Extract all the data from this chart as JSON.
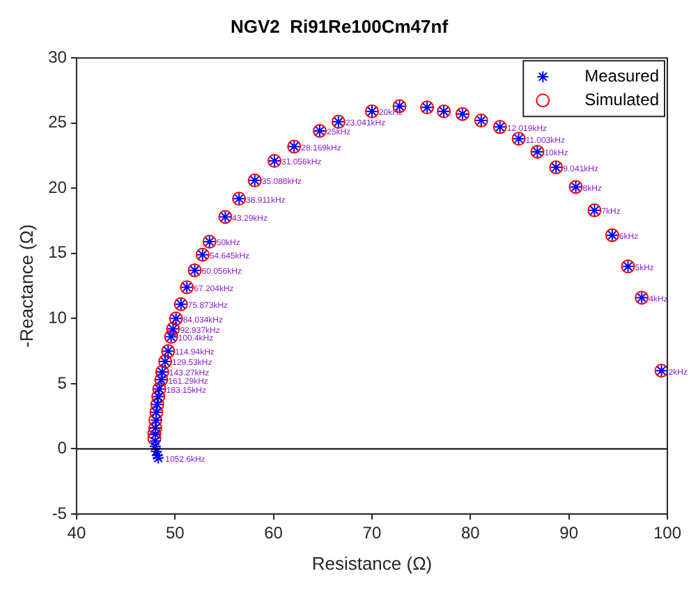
{
  "chart_data": {
    "type": "scatter",
    "title": "NGV2  Ri91Re100Cm47nf",
    "xlabel": "Resistance (Ω)",
    "ylabel": "-Reactance (Ω)",
    "series": [
      {
        "name": "Measured",
        "color": "#0000ff",
        "marker": "cross",
        "x": [
          99.4,
          97.4,
          96.0,
          94.4,
          92.6,
          90.7,
          88.7,
          86.8,
          84.9,
          83.0,
          81.1,
          79.2,
          77.3,
          75.6,
          72.8,
          70.0,
          66.6,
          64.7,
          62.1,
          60.1,
          58.1,
          56.5,
          55.1,
          53.5,
          52.8,
          52.0,
          51.2,
          50.6,
          50.1,
          49.8,
          49.6,
          49.3,
          49.0,
          48.7,
          48.6,
          48.4,
          48.3,
          48.2,
          48.1,
          48.1,
          48.0,
          48.0,
          48.0,
          48.0,
          48.1,
          48.2,
          48.3
        ],
        "values": [
          6.0,
          11.6,
          14.0,
          16.4,
          18.3,
          20.1,
          21.6,
          22.8,
          23.8,
          24.7,
          25.2,
          25.7,
          25.9,
          26.2,
          26.3,
          25.9,
          25.1,
          24.4,
          23.2,
          22.1,
          20.6,
          19.2,
          17.8,
          15.9,
          14.9,
          13.7,
          12.4,
          11.1,
          10.0,
          9.2,
          8.6,
          7.5,
          6.7,
          5.9,
          5.3,
          4.6,
          4.0,
          3.4,
          2.8,
          2.2,
          1.6,
          1.1,
          0.6,
          0.2,
          -0.2,
          -0.5,
          -0.7
        ]
      },
      {
        "name": "Simulated",
        "color": "#ff0000",
        "marker": "circle",
        "x": [
          99.4,
          97.4,
          96.0,
          94.4,
          92.6,
          90.7,
          88.7,
          86.8,
          84.9,
          83.0,
          81.1,
          79.2,
          77.3,
          75.6,
          72.8,
          70.0,
          66.6,
          64.7,
          62.1,
          60.1,
          58.1,
          56.5,
          55.1,
          53.5,
          52.8,
          52.0,
          51.2,
          50.6,
          50.1,
          49.8,
          49.6,
          49.3,
          49.0,
          48.7,
          48.6,
          48.4,
          48.3,
          48.2,
          48.1,
          48.0,
          48.0,
          47.9,
          47.9
        ],
        "values": [
          6.0,
          11.6,
          14.0,
          16.4,
          18.3,
          20.1,
          21.6,
          22.8,
          23.8,
          24.7,
          25.2,
          25.7,
          25.9,
          26.2,
          26.3,
          25.9,
          25.1,
          24.4,
          23.2,
          22.1,
          20.6,
          19.2,
          17.8,
          15.9,
          14.9,
          13.7,
          12.4,
          11.1,
          10.0,
          9.2,
          8.6,
          7.5,
          6.7,
          5.9,
          5.3,
          4.6,
          4.0,
          3.4,
          2.8,
          2.2,
          1.6,
          1.2,
          0.8
        ]
      }
    ],
    "annotations": [
      {
        "text": "2kHz",
        "x": 99.4,
        "y": 6.0
      },
      {
        "text": "4kHz",
        "x": 97.4,
        "y": 11.6
      },
      {
        "text": "5kHz",
        "x": 96.0,
        "y": 14.0
      },
      {
        "text": "6kHz",
        "x": 94.4,
        "y": 16.4
      },
      {
        "text": "7kHz",
        "x": 92.6,
        "y": 18.3
      },
      {
        "text": "8kHz",
        "x": 90.7,
        "y": 20.1
      },
      {
        "text": "9.041kHz",
        "x": 88.7,
        "y": 21.6
      },
      {
        "text": "10kHz",
        "x": 86.8,
        "y": 22.8
      },
      {
        "text": "11.003kHz",
        "x": 84.9,
        "y": 23.8
      },
      {
        "text": "12.019kHz",
        "x": 83.0,
        "y": 24.7
      },
      {
        "text": "20kHz",
        "x": 70.0,
        "y": 25.9
      },
      {
        "text": "23.041kHz",
        "x": 66.6,
        "y": 25.1
      },
      {
        "text": "25kHz",
        "x": 64.7,
        "y": 24.4
      },
      {
        "text": "28.169kHz",
        "x": 62.1,
        "y": 23.2
      },
      {
        "text": "31.056kHz",
        "x": 60.1,
        "y": 22.1
      },
      {
        "text": "35.088kHz",
        "x": 58.1,
        "y": 20.6
      },
      {
        "text": "38.911kHz",
        "x": 56.5,
        "y": 19.2
      },
      {
        "text": "43.29kHz",
        "x": 55.1,
        "y": 17.8
      },
      {
        "text": "50kHz",
        "x": 53.5,
        "y": 15.9
      },
      {
        "text": "54.645kHz",
        "x": 52.8,
        "y": 14.9
      },
      {
        "text": "60.056kHz",
        "x": 52.0,
        "y": 13.7
      },
      {
        "text": "67.204kHz",
        "x": 51.2,
        "y": 12.4
      },
      {
        "text": "75.873kHz",
        "x": 50.6,
        "y": 11.1
      },
      {
        "text": "84.034kHz",
        "x": 50.1,
        "y": 10.0
      },
      {
        "text": "92.937kHz",
        "x": 49.8,
        "y": 9.2
      },
      {
        "text": "100.4kHz",
        "x": 49.6,
        "y": 8.6
      },
      {
        "text": "114.94kHz",
        "x": 49.3,
        "y": 7.5
      },
      {
        "text": "129.53kHz",
        "x": 49.0,
        "y": 6.7
      },
      {
        "text": "143.27kHz",
        "x": 48.7,
        "y": 5.9
      },
      {
        "text": "161.29kHz",
        "x": 48.6,
        "y": 5.3
      },
      {
        "text": "183.15kHz",
        "x": 48.4,
        "y": 4.6
      },
      {
        "text": "1052.6kHz",
        "x": 48.3,
        "y": -0.7
      }
    ],
    "ref_lines": [
      {
        "axis": "y",
        "value": 0,
        "color": "#000000"
      }
    ],
    "xlim": [
      40,
      100
    ],
    "xticks": [
      40,
      50,
      60,
      70,
      80,
      90,
      100
    ],
    "ylim": [
      -5,
      30
    ],
    "yticks": [
      -5,
      0,
      5,
      10,
      15,
      20,
      25,
      30
    ],
    "grid": false,
    "legend": "top right"
  }
}
